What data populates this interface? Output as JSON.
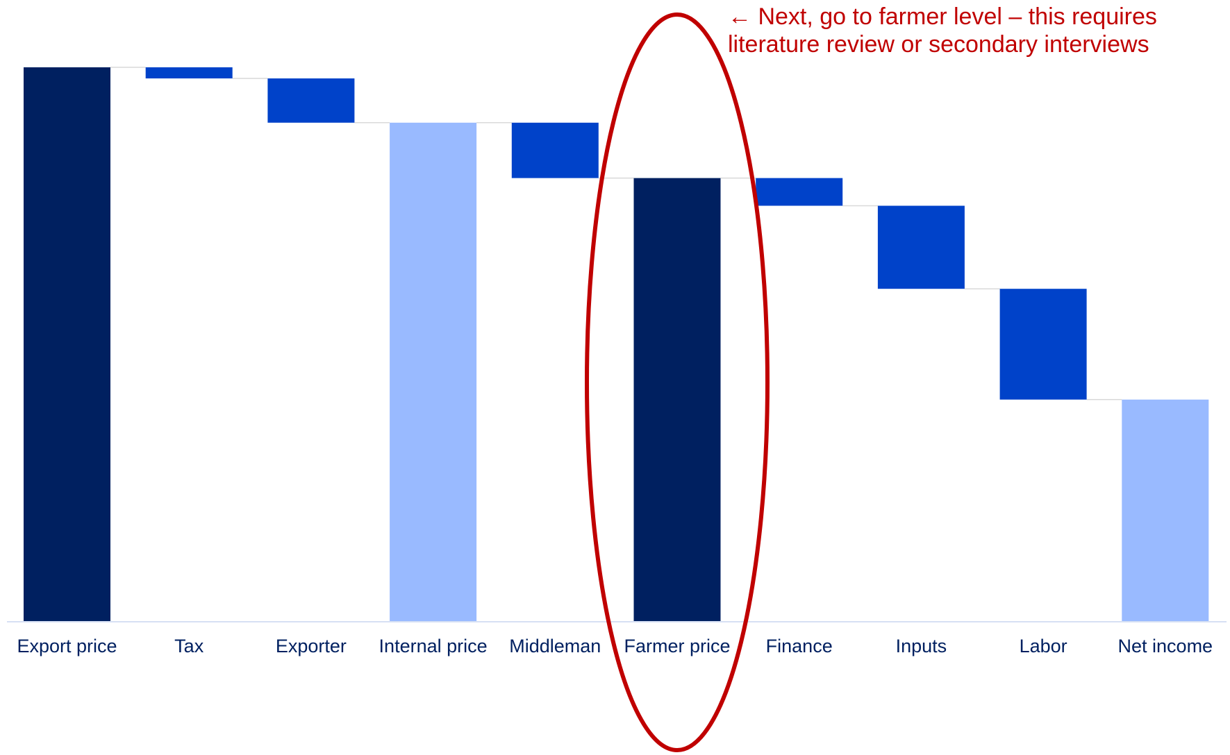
{
  "chart_data": {
    "type": "bar",
    "subtype": "waterfall",
    "title": "",
    "xlabel": "",
    "ylabel": "",
    "ylim": [
      0,
      100
    ],
    "axis_visible": false,
    "grid": false,
    "legend": "none",
    "categories": [
      "Export price",
      "Tax",
      "Exporter",
      "Internal price",
      "Middleman",
      "Farmer price",
      "Finance",
      "Inputs",
      "Labor",
      "Net income"
    ],
    "bars": [
      {
        "label": "Export price",
        "kind": "total",
        "start": 0,
        "end": 100
      },
      {
        "label": "Tax",
        "kind": "decrease",
        "start": 100,
        "end": 98
      },
      {
        "label": "Exporter",
        "kind": "decrease",
        "start": 98,
        "end": 90
      },
      {
        "label": "Internal price",
        "kind": "subtotal",
        "start": 0,
        "end": 90
      },
      {
        "label": "Middleman",
        "kind": "decrease",
        "start": 90,
        "end": 80
      },
      {
        "label": "Farmer price",
        "kind": "total",
        "start": 0,
        "end": 80
      },
      {
        "label": "Finance",
        "kind": "decrease",
        "start": 80,
        "end": 75
      },
      {
        "label": "Inputs",
        "kind": "decrease",
        "start": 75,
        "end": 60
      },
      {
        "label": "Labor",
        "kind": "decrease",
        "start": 60,
        "end": 40
      },
      {
        "label": "Net income",
        "kind": "subtotal",
        "start": 0,
        "end": 40
      }
    ],
    "colors": {
      "total": "#002060",
      "decrease": "#0042c9",
      "subtotal": "#99baff",
      "connector": "#d9d9d9",
      "axis": "#c9d5f0",
      "tick_label": "#002060",
      "highlight": "#c00000"
    },
    "highlight": {
      "category": "Farmer price",
      "shape": "ellipse"
    },
    "annotation": {
      "lines": [
        "← Next, go to farmer level – this requires",
        "literature review or secondary interviews"
      ]
    }
  }
}
